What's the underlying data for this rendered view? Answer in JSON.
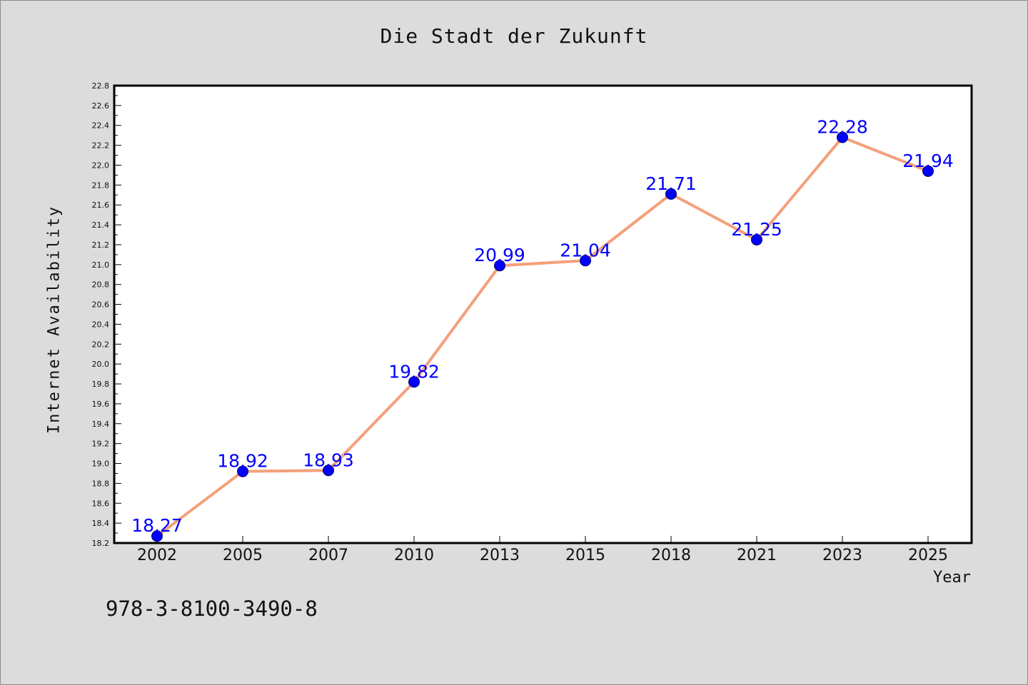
{
  "chart_data": {
    "type": "line",
    "title": "Die Stadt der Zukunft",
    "xlabel": "Year",
    "ylabel": "Internet Availability",
    "categories": [
      "2002",
      "2005",
      "2007",
      "2010",
      "2013",
      "2015",
      "2018",
      "2021",
      "2023",
      "2025"
    ],
    "series": [
      {
        "values": [
          18.27,
          18.92,
          18.93,
          19.82,
          20.99,
          21.04,
          21.71,
          21.25,
          22.28,
          21.94
        ],
        "line_color": "#f4a07c",
        "marker_color": "#0000ff"
      }
    ],
    "data_labels": [
      "18.27",
      "18.92",
      "18.93",
      "19.82",
      "20.99",
      "21.04",
      "21.71",
      "21.25",
      "22.28",
      "21.94"
    ],
    "ylim": [
      18.2,
      22.8
    ],
    "yticks": [
      "18.2",
      "18.4",
      "18.6",
      "18.8",
      "19.0",
      "19.2",
      "19.4",
      "19.6",
      "19.8",
      "20.0",
      "20.2",
      "20.4",
      "20.6",
      "20.8",
      "21.0",
      "21.2",
      "21.4",
      "21.6",
      "21.8",
      "22.0",
      "22.2",
      "22.4",
      "22.6",
      "22.8"
    ],
    "grid": false,
    "legend": "none"
  },
  "footer": {
    "isbn": "978-3-8100-3490-8"
  },
  "colors": {
    "background": "#dcdcdc",
    "plot_background": "#ffffff",
    "line": "#f4a07c",
    "marker": "#0000ff",
    "label": "#0000ff"
  }
}
